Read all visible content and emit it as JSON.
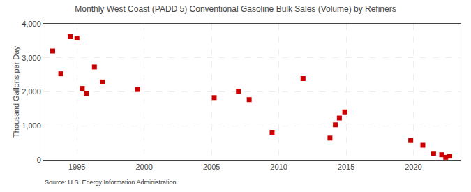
{
  "chart_data": {
    "type": "scatter",
    "title": "Monthly West Coast (PADD 5) Conventional Gasoline Bulk Sales (Volume) by Refiners",
    "ylabel": "Thousand Gallons per Day",
    "source": "Source: U.S. Energy Information Administration",
    "color": "#cc0000",
    "marker": "square",
    "x": [
      1993.2,
      1993.8,
      1994.5,
      1995.0,
      1995.4,
      1995.7,
      1996.3,
      1996.9,
      1999.5,
      2005.2,
      2007.0,
      2007.8,
      2009.5,
      2011.8,
      2013.8,
      2014.2,
      2014.5,
      2014.9,
      2019.8,
      2020.7,
      2021.5,
      2022.1,
      2022.4,
      2022.7
    ],
    "values": [
      3200,
      2530,
      3620,
      3580,
      2100,
      1950,
      2730,
      2290,
      2070,
      1830,
      2010,
      1770,
      810,
      2390,
      640,
      1030,
      1230,
      1410,
      570,
      430,
      190,
      150,
      75,
      110
    ],
    "xlim": [
      1992.5,
      2023.5
    ],
    "xticks": [
      1995,
      2000,
      2005,
      2010,
      2015,
      2020
    ],
    "ylim": [
      0,
      4000
    ],
    "yticks": [
      0,
      {
        "value": 1000,
        "label": "1,000"
      },
      {
        "value": 2000,
        "label": "2,000"
      },
      {
        "value": 3000,
        "label": "3,000"
      },
      {
        "value": 4000,
        "label": "4,000"
      }
    ],
    "grid": true
  }
}
